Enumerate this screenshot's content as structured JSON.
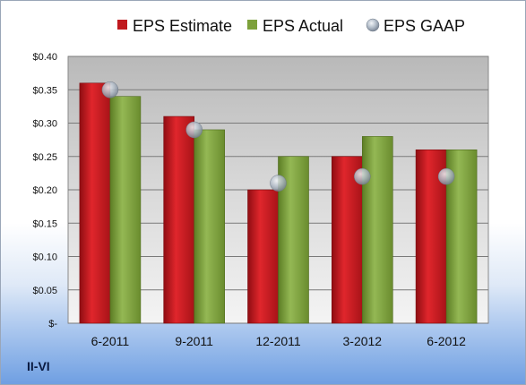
{
  "company": "II-VI",
  "colors": {
    "estimate": "#c0191e",
    "actual": "#7da13b",
    "gaap": "#9aa7b6"
  },
  "chart_data": {
    "type": "bar",
    "categories": [
      "6-2011",
      "9-2011",
      "12-2011",
      "3-2012",
      "6-2012"
    ],
    "series": [
      {
        "name": "EPS Estimate",
        "kind": "bar",
        "values": [
          0.36,
          0.31,
          0.2,
          0.25,
          0.26
        ]
      },
      {
        "name": "EPS Actual",
        "kind": "bar",
        "values": [
          0.34,
          0.29,
          0.25,
          0.28,
          0.26
        ]
      },
      {
        "name": "EPS GAAP",
        "kind": "marker",
        "values": [
          0.35,
          0.29,
          0.21,
          0.22,
          0.22
        ]
      }
    ],
    "y_ticks": [
      {
        "value": 0.4,
        "label": "$0.40"
      },
      {
        "value": 0.35,
        "label": "$0.35"
      },
      {
        "value": 0.3,
        "label": "$0.30"
      },
      {
        "value": 0.25,
        "label": "$0.25"
      },
      {
        "value": 0.2,
        "label": "$0.20"
      },
      {
        "value": 0.15,
        "label": "$0.15"
      },
      {
        "value": 0.1,
        "label": "$0.10"
      },
      {
        "value": 0.05,
        "label": "$0.05"
      },
      {
        "value": 0.0,
        "label": "$-"
      }
    ],
    "ylim": [
      0,
      0.4
    ],
    "grid": true,
    "legend": "top"
  }
}
